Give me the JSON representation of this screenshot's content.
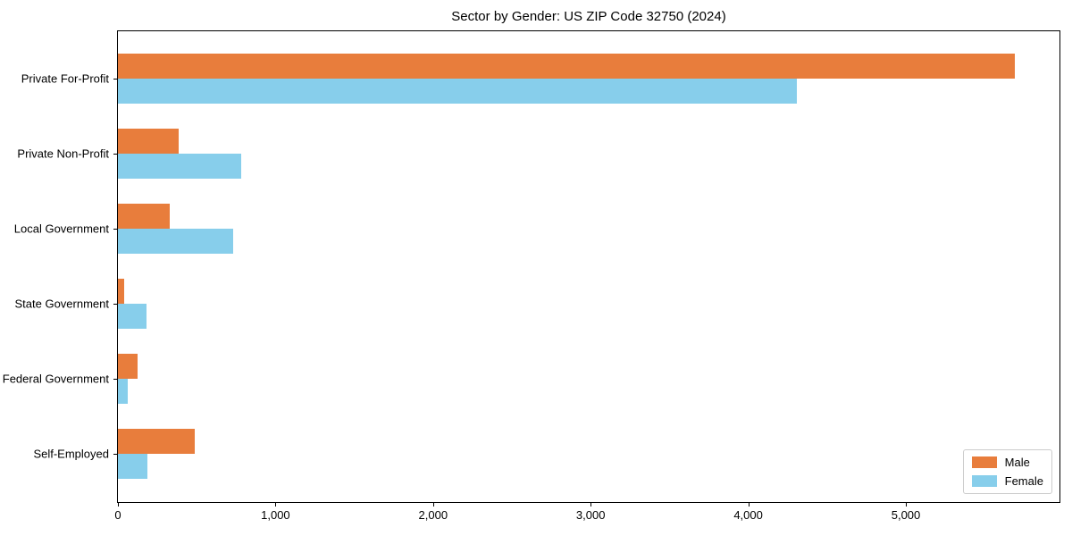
{
  "chart_data": {
    "type": "bar",
    "orientation": "horizontal",
    "title": "Sector by Gender: US ZIP Code 32750 (2024)",
    "categories": [
      "Private For-Profit",
      "Private Non-Profit",
      "Local Government",
      "State Government",
      "Federal Government",
      "Self-Employed"
    ],
    "series": [
      {
        "name": "Male",
        "color": "#E87D3C",
        "values": [
          5690,
          385,
          330,
          38,
          125,
          490
        ]
      },
      {
        "name": "Female",
        "color": "#87CEEB",
        "values": [
          4310,
          780,
          730,
          180,
          60,
          188
        ]
      }
    ],
    "xlabel": "",
    "ylabel": "",
    "xlim": [
      0,
      5975
    ],
    "x_ticks": [
      {
        "value": 0,
        "label": "0"
      },
      {
        "value": 1000,
        "label": "1,000"
      },
      {
        "value": 2000,
        "label": "2,000"
      },
      {
        "value": 3000,
        "label": "3,000"
      },
      {
        "value": 4000,
        "label": "4,000"
      },
      {
        "value": 5000,
        "label": "5,000"
      }
    ],
    "grid": false,
    "legend": {
      "position": "lower-right",
      "entries": [
        "Male",
        "Female"
      ]
    }
  }
}
